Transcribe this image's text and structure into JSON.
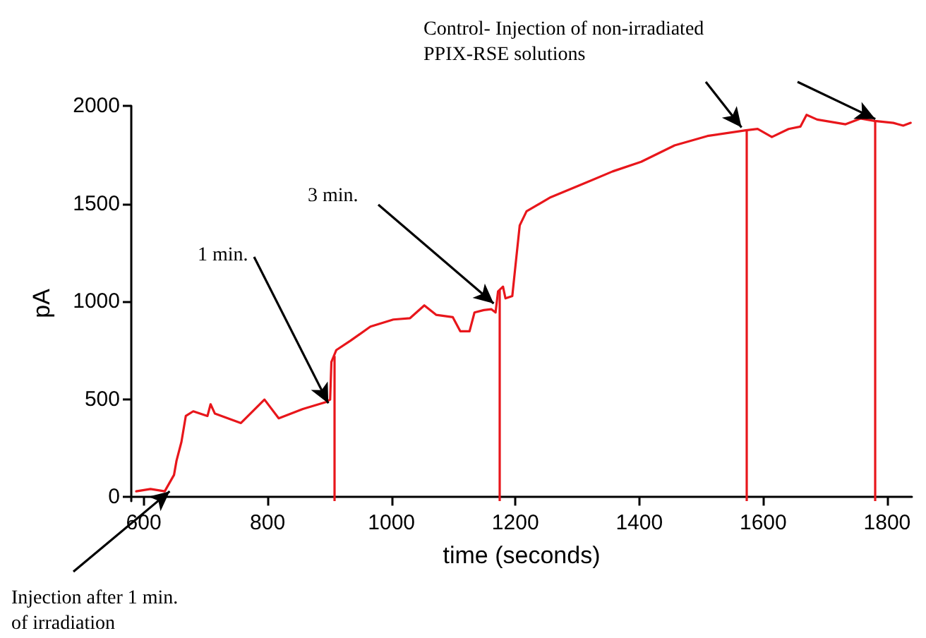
{
  "chart_data": {
    "type": "line",
    "xlabel": "time (seconds)",
    "ylabel": "pA",
    "xlim": [
      580,
      1840
    ],
    "ylim": [
      -20,
      2000
    ],
    "xticks": [
      600,
      800,
      1000,
      1200,
      1400,
      1600,
      1800
    ],
    "yticks": [
      0,
      500,
      1000,
      1500,
      2000
    ],
    "grid": false,
    "marker": "none",
    "line_style": "solid",
    "series": [
      {
        "color": "#e8161b",
        "x": [
          588,
          611,
          634,
          649,
          653,
          661,
          668,
          680,
          703,
          708,
          715,
          757,
          795,
          818,
          857,
          895,
          901,
          903,
          911,
          934,
          966,
          1003,
          1030,
          1053,
          1072,
          1099,
          1111,
          1126,
          1134,
          1149,
          1161,
          1168,
          1172,
          1180,
          1184,
          1195,
          1199,
          1207,
          1218,
          1257,
          1303,
          1357,
          1403,
          1457,
          1510,
          1572,
          1591,
          1614,
          1641,
          1660,
          1670,
          1687,
          1733,
          1757,
          1780,
          1810,
          1826,
          1838
        ],
        "values": [
          30,
          42,
          30,
          114,
          186,
          283,
          415,
          439,
          415,
          475,
          427,
          379,
          499,
          403,
          451,
          487,
          499,
          691,
          752,
          800,
          872,
          908,
          915,
          980,
          932,
          920,
          848,
          848,
          944,
          956,
          961,
          944,
          1052,
          1076,
          1016,
          1028,
          1149,
          1389,
          1461,
          1533,
          1593,
          1665,
          1714,
          1798,
          1846,
          1875,
          1882,
          1841,
          1882,
          1894,
          1954,
          1930,
          1906,
          1935,
          1923,
          1913,
          1899,
          1913
        ]
      }
    ],
    "ref_lines": [
      {
        "axis": "x",
        "value": 907,
        "color": "#e8161b"
      },
      {
        "axis": "x",
        "value": 1174,
        "color": "#e8161b"
      },
      {
        "axis": "x",
        "value": 1573,
        "color": "#e8161b"
      },
      {
        "axis": "x",
        "value": 1781,
        "color": "#e8161b"
      }
    ],
    "annotations": [
      {
        "text": "1 min.",
        "x": 898,
        "y": 480
      },
      {
        "text": "3 min.",
        "x": 1165,
        "y": 990
      },
      {
        "text": "Control- Injection of non-irradiated\nPPIX-RSE solutions",
        "x": 1565,
        "y": 1890
      },
      {
        "text": "Injection after 1 min.\nof irradiation",
        "x": 642,
        "y": 30
      }
    ]
  }
}
